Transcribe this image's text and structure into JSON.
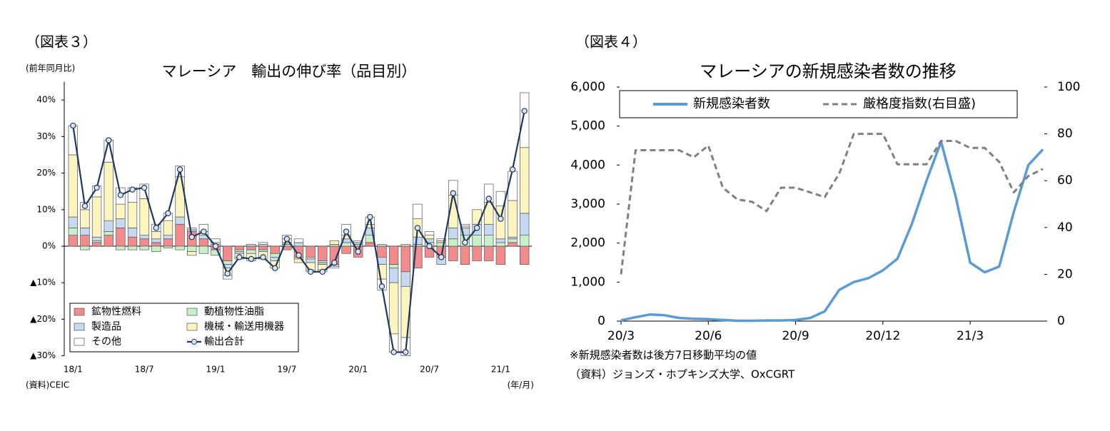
{
  "chart_data": [
    {
      "type": "bar",
      "stacked": true,
      "figure_label": "（図表３）",
      "title": "マレーシア　輸出の伸び率（品目別）",
      "y_axis_label": "(前年同月比)",
      "source": "(資料)CEIC",
      "x_axis_label": "(年/月)",
      "categories": [
        "18/1",
        null,
        null,
        null,
        null,
        null,
        "18/7",
        null,
        null,
        null,
        null,
        null,
        "19/1",
        null,
        null,
        null,
        null,
        null,
        "19/7",
        null,
        null,
        null,
        null,
        null,
        "20/1",
        null,
        null,
        null,
        null,
        null,
        "20/7",
        null,
        null,
        null,
        null,
        null,
        "21/1",
        null,
        null
      ],
      "ylim": [
        -30,
        45
      ],
      "yticks": [
        {
          "value": -30,
          "label": "▲30%"
        },
        {
          "value": -20,
          "label": "▲20%"
        },
        {
          "value": -10,
          "label": "▲10%"
        },
        {
          "value": 0,
          "label": "0%"
        },
        {
          "value": 10,
          "label": "10%"
        },
        {
          "value": 20,
          "label": "20%"
        },
        {
          "value": 30,
          "label": "30%"
        },
        {
          "value": 40,
          "label": "40%"
        }
      ],
      "series": [
        {
          "name": "鉱物性燃料",
          "color": "#f28b8b",
          "values": [
            3,
            3,
            1,
            3,
            5,
            2.5,
            2,
            1,
            2,
            6,
            4,
            2,
            -1,
            -4,
            -1,
            -1,
            -1,
            -2,
            -1,
            -3,
            -3,
            -4,
            -5,
            -2,
            -3,
            1,
            -3,
            -5,
            -7,
            -6,
            -3,
            -3,
            -4,
            -5,
            -4,
            -4,
            -5,
            1,
            -5
          ]
        },
        {
          "name": "動植物性油脂",
          "color": "#c8f0c8",
          "values": [
            2,
            -1,
            0.5,
            1,
            -1,
            -1,
            -1,
            -1.5,
            -0.5,
            -1,
            -1.5,
            -2,
            -1.5,
            -1,
            -0.5,
            -1,
            -0.5,
            -1,
            0.5,
            -0.5,
            -0.5,
            -0.5,
            0.5,
            1,
            0.5,
            2,
            0.5,
            -1,
            0.5,
            0.5,
            1,
            1,
            2,
            3,
            3,
            3,
            1,
            1,
            3
          ]
        },
        {
          "name": "製造品",
          "color": "#c5d9f1",
          "values": [
            3,
            2,
            1,
            3,
            2.5,
            2.5,
            1,
            1,
            1,
            2,
            0.5,
            1,
            0.5,
            -1,
            -0.5,
            0.5,
            0.5,
            -1,
            0.5,
            1,
            -1,
            -0.5,
            -0.5,
            1,
            0.5,
            2,
            -2,
            -4,
            -4,
            2,
            1,
            -2,
            3,
            2,
            3,
            3,
            1,
            0.5,
            6
          ]
        },
        {
          "name": "機械・輸送用機器",
          "color": "#fdf5c0",
          "values": [
            17,
            5,
            11,
            16,
            4,
            7,
            10,
            2,
            4,
            11,
            -1,
            1,
            0.5,
            -2,
            -1,
            -2,
            -2,
            -2,
            1,
            -1,
            -2,
            -1.5,
            1,
            1,
            0,
            1,
            -4,
            -14,
            -14,
            5,
            1,
            0.5,
            9,
            0.5,
            4,
            6,
            9,
            10,
            18
          ]
        },
        {
          "name": "その他",
          "color": "#ffffff",
          "values": [
            8,
            2,
            3,
            6,
            4.5,
            4,
            4,
            2,
            2,
            3,
            0.5,
            2,
            1,
            -1,
            -0.5,
            0,
            0.5,
            0,
            1,
            1,
            -0.5,
            -0.5,
            -0.5,
            3,
            0.5,
            2,
            -3,
            -5,
            -5,
            4,
            1,
            0.5,
            4,
            0.5,
            0,
            5,
            4,
            8,
            15
          ]
        },
        {
          "name": "輸出合計",
          "type": "line",
          "color": "#1f3864",
          "values": [
            33,
            11,
            16,
            29,
            14,
            15.5,
            16,
            5,
            9,
            21,
            2.5,
            4,
            0,
            -7.5,
            -3,
            -3.5,
            -3,
            -6,
            2,
            -2.5,
            -7,
            -7,
            -4.5,
            4,
            -1.5,
            8,
            -11,
            -29,
            -29,
            5,
            0,
            -3,
            14.5,
            1,
            5,
            13,
            7.5,
            21,
            37
          ]
        }
      ]
    },
    {
      "type": "line",
      "figure_label": "（図表４）",
      "title": "マレーシアの新規感染者数の推移",
      "notes": [
        "※新規感染者数は後方7日移動平均の値",
        "（資料）ジョンズ・ホプキンズ大学、OxCGRT"
      ],
      "categories": [
        "20/3",
        null,
        null,
        null,
        null,
        null,
        "20/6",
        null,
        null,
        null,
        null,
        null,
        "20/9",
        null,
        null,
        null,
        null,
        null,
        "20/12",
        null,
        null,
        null,
        null,
        null,
        "21/3",
        null,
        null,
        null,
        null,
        null
      ],
      "ylim": [
        0,
        6000
      ],
      "yticks": [
        0,
        {
          "value": 1000,
          "label": "1,000"
        },
        {
          "value": 2000,
          "label": "2,000"
        },
        {
          "value": 3000,
          "label": "3,000"
        },
        {
          "value": 4000,
          "label": "4,000"
        },
        {
          "value": 5000,
          "label": "5,000"
        },
        {
          "value": 6000,
          "label": "6,000"
        }
      ],
      "y2lim": [
        0,
        100
      ],
      "y2ticks": [
        0,
        20,
        40,
        60,
        80,
        100
      ],
      "series": [
        {
          "name": "新規感染者数",
          "color": "#5b9bd5",
          "values": [
            20,
            100,
            170,
            150,
            80,
            60,
            50,
            30,
            10,
            10,
            15,
            15,
            30,
            80,
            250,
            800,
            1000,
            1100,
            1300,
            1600,
            2500,
            3600,
            4600,
            3200,
            1500,
            1250,
            1400,
            2800,
            4000,
            4400
          ]
        },
        {
          "name": "厳格度指数(右目盛)",
          "axis": "y2",
          "color": "#808080",
          "dashed": true,
          "values": [
            20,
            73,
            73,
            73,
            73,
            70,
            75,
            57,
            52,
            51,
            47,
            57,
            57,
            55,
            53,
            63,
            80,
            80,
            80,
            67,
            67,
            67,
            77,
            77,
            74,
            74,
            68,
            55,
            62,
            65
          ]
        }
      ]
    }
  ]
}
